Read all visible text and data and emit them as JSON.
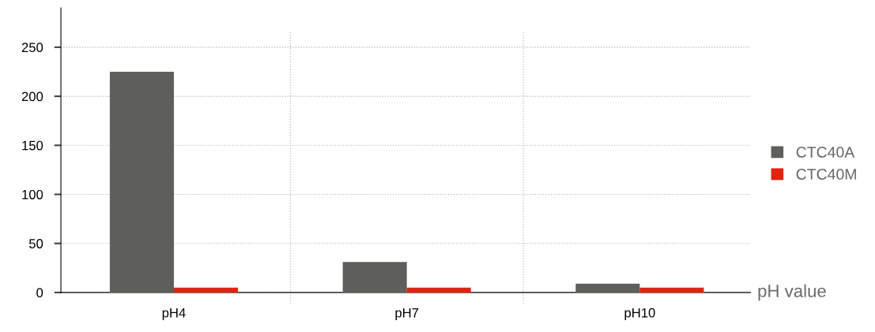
{
  "chart_data": {
    "type": "bar",
    "xlabel": "pH value",
    "categories": [
      "pH4",
      "pH7",
      "pH10"
    ],
    "series": [
      {
        "name": "CTC40A",
        "color": "#5e5e5b",
        "values": [
          225,
          31,
          9
        ]
      },
      {
        "name": "CTC40M",
        "color": "#e2230f",
        "values": [
          5,
          5,
          5
        ]
      }
    ],
    "ylim": [
      0,
      290
    ],
    "yticks": [
      0,
      50,
      100,
      150,
      200,
      250
    ],
    "grid": true,
    "legend": "right"
  }
}
